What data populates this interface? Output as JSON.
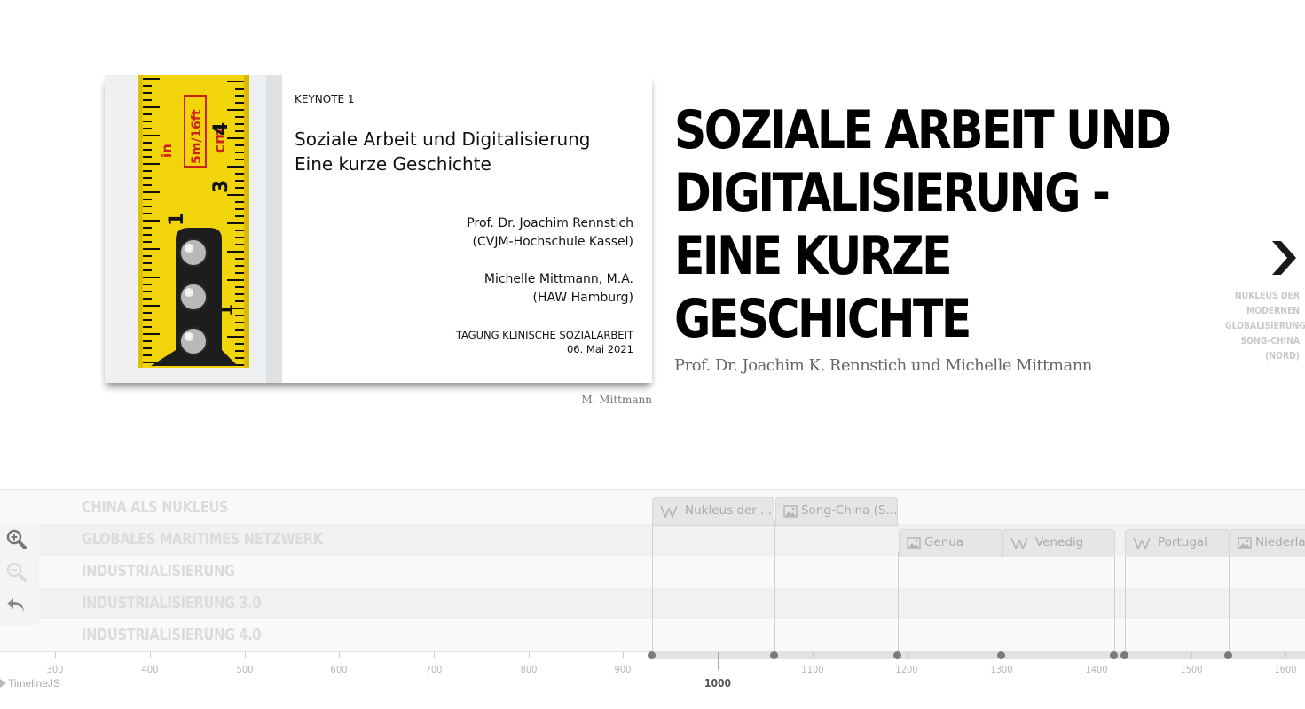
{
  "slide": {
    "image": {
      "keynote": "KEYNOTE 1",
      "title_line1": "Soziale Arbeit und Digitalisierung",
      "title_line2": "Eine kurze Geschichte",
      "author1_name": "Prof. Dr. Joachim Rennstich",
      "author1_affiliation": "(CVJM-Hochschule Kassel)",
      "author2_name": "Michelle Mittmann, M.A.",
      "author2_affiliation": "(HAW Hamburg)",
      "event_name": "TAGUNG KLINISCHE SOZIALARBEIT",
      "event_date": "06. Mai 2021",
      "tape_labels": [
        "5m/16ft",
        "in",
        "cm",
        "4",
        "3",
        "2",
        "1"
      ]
    },
    "credit": "M. Mittmann",
    "headline_lines": [
      "Soziale Arbeit und",
      "Digitalisierung -",
      "Eine kurze",
      "Geschichte"
    ],
    "subtitle": "Prof. Dr. Joachim K. Rennstich und Michelle Mittmann"
  },
  "next_slide": {
    "arrow_icon": "chevron-right-icon",
    "lines": [
      "Nukleus der",
      "modernen",
      "Globalisierung:",
      "Song-China",
      "(Nord)"
    ]
  },
  "timenav": {
    "groups": [
      "China als Nukleus",
      "Globales maritimes Netzwerk",
      "Industrialisierung",
      "Industrialisierung 3.0",
      "Industrialisierung 4.0"
    ],
    "tools": [
      "zoom-in-icon",
      "zoom-out-icon",
      "back-to-start-icon"
    ],
    "markers": [
      {
        "icon": "wikipedia-icon",
        "label": "Nukleus der ..."
      },
      {
        "icon": "image-icon",
        "label": "Song-China (S..."
      },
      {
        "icon": "image-icon",
        "label": "Genua"
      },
      {
        "icon": "wikipedia-icon",
        "label": "Venedig"
      },
      {
        "icon": "wikipedia-icon",
        "label": "Portugal"
      },
      {
        "icon": "image-icon",
        "label": "Niederlande"
      }
    ],
    "axis_ticks": [
      "300",
      "400",
      "500",
      "600",
      "700",
      "800",
      "900",
      "1100",
      "1200",
      "1300",
      "1400",
      "1500",
      "1600"
    ],
    "axis_major": "1000",
    "brand": "TimelineJS"
  }
}
